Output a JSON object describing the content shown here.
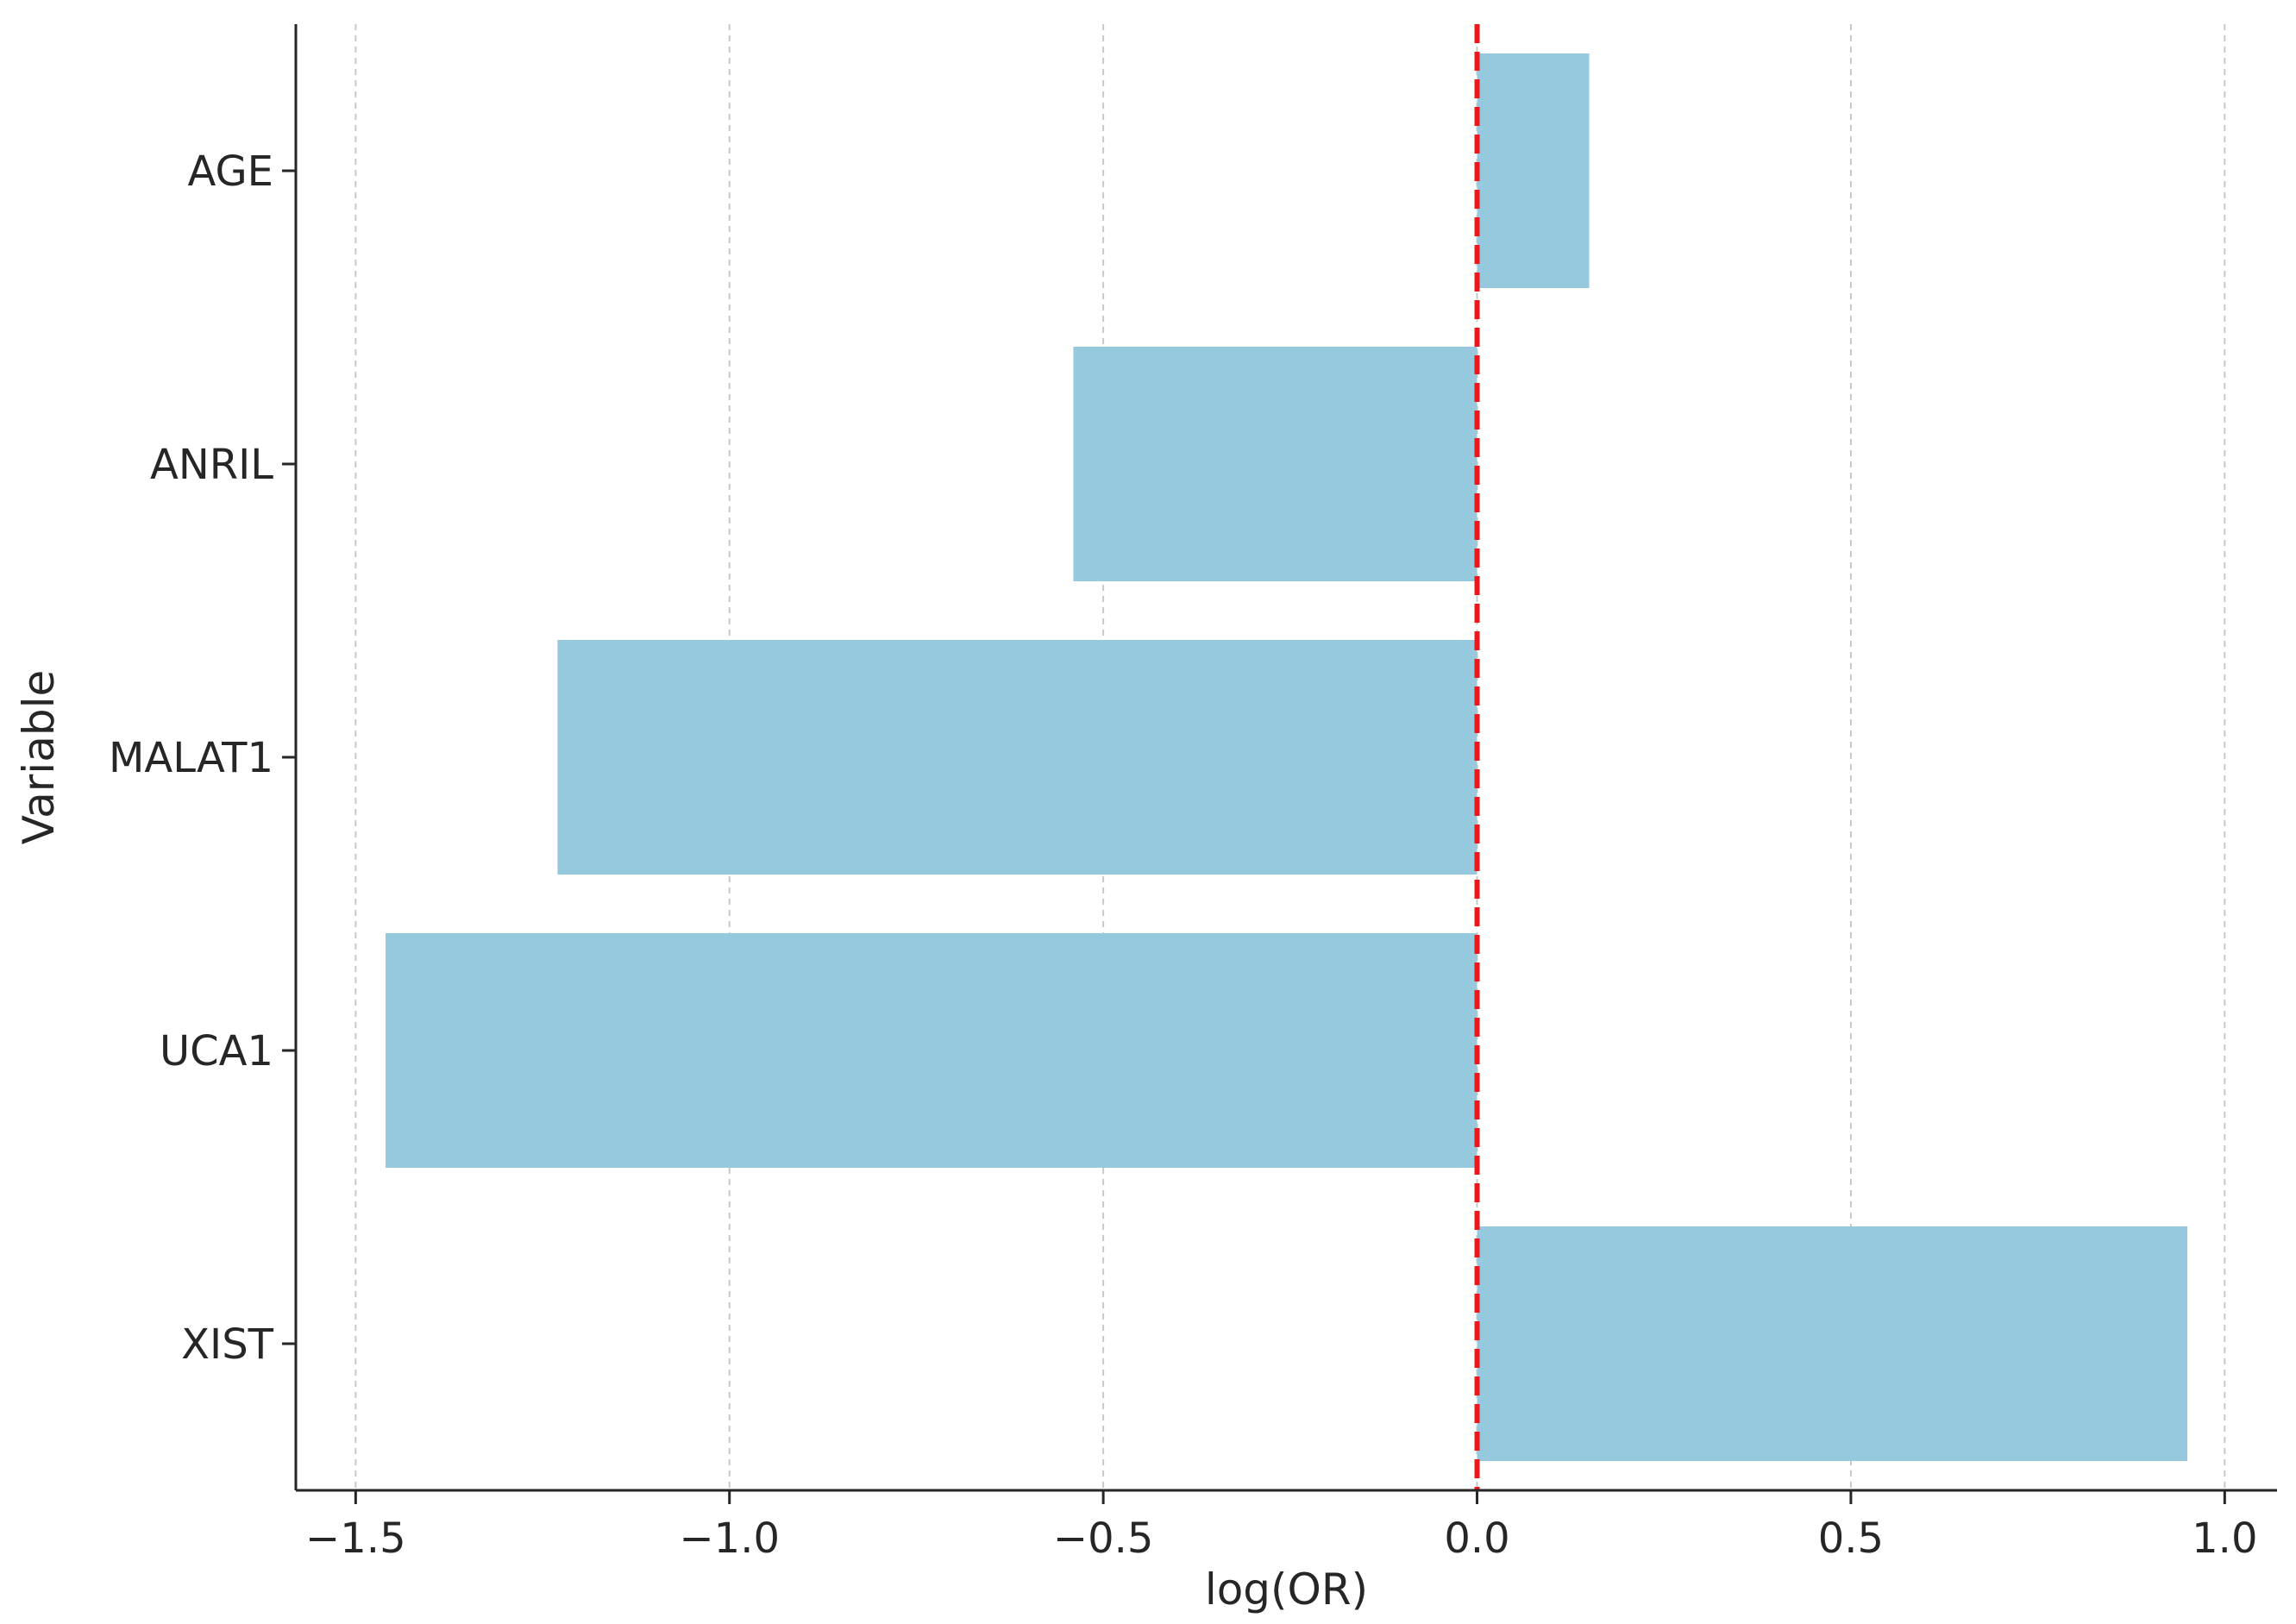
{
  "chart_data": {
    "type": "bar",
    "orientation": "horizontal",
    "categories": [
      "AGE",
      "ANRIL",
      "MALAT1",
      "UCA1",
      "XIST"
    ],
    "values": [
      0.15,
      -0.54,
      -1.23,
      -1.46,
      0.95
    ],
    "title": "",
    "xlabel": "log(OR)",
    "ylabel": "Variable",
    "xlim": [
      -1.58,
      1.07
    ],
    "xticks": [
      -1.5,
      -1.0,
      -0.5,
      0.0,
      0.5,
      1.0
    ],
    "xtick_labels": [
      "−1.5",
      "−1.0",
      "−0.5",
      "0.0",
      "0.5",
      "1.0"
    ],
    "reference_line": {
      "x": 0.0,
      "style": "dashed"
    },
    "grid": "vertical-dashed",
    "legend": "none"
  },
  "colors": {
    "bar": "#96c8de",
    "reference_line": "#e8191c",
    "grid": "#c8c8c8",
    "axis": "#262626"
  }
}
